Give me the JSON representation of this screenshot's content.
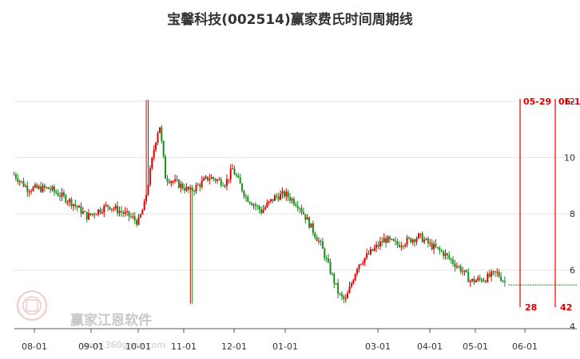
{
  "chart_data": {
    "type": "candlestick",
    "title": "宝馨科技(002514)赢家费氏时间周期线",
    "xlabel": "",
    "ylabel": "",
    "ylim": [
      4,
      12
    ],
    "y_ticks": [
      4,
      6,
      8,
      10,
      12
    ],
    "x_ticks": [
      "08-01",
      "09-01",
      "10-01",
      "11-01",
      "12-01",
      "01-01",
      "03-01",
      "04-01",
      "05-01",
      "06-01"
    ],
    "grid": true,
    "colors": {
      "up": "#e00000",
      "down": "#1a8a1a",
      "cycle_line": "#e00000",
      "grid": "#e6e6e6"
    },
    "price_path": [
      [
        "07-16",
        9.4
      ],
      [
        "07-26",
        8.9
      ],
      [
        "08-09",
        8.9
      ],
      [
        "08-21",
        8.4
      ],
      [
        "08-29",
        7.9
      ],
      [
        "09-05",
        8.1
      ],
      [
        "09-12",
        8.3
      ],
      [
        "09-19",
        8.1
      ],
      [
        "09-26",
        7.9
      ],
      [
        "10-01",
        7.7
      ],
      [
        "10-05",
        8.3
      ],
      [
        "10-12",
        10.5
      ],
      [
        "10-15",
        11.2
      ],
      [
        "10-19",
        9.3
      ],
      [
        "10-26",
        9.1
      ],
      [
        "11-05",
        8.8
      ],
      [
        "11-16",
        9.3
      ],
      [
        "11-26",
        9.1
      ],
      [
        "11-30",
        9.6
      ],
      [
        "12-08",
        8.6
      ],
      [
        "12-17",
        8.1
      ],
      [
        "12-25",
        8.6
      ],
      [
        "01-01",
        8.7
      ],
      [
        "01-10",
        8.3
      ],
      [
        "01-24",
        6.9
      ],
      [
        "02-06",
        5.1
      ],
      [
        "02-10",
        4.9
      ],
      [
        "02-18",
        6.2
      ],
      [
        "03-05",
        7.1
      ],
      [
        "03-12",
        6.9
      ],
      [
        "03-25",
        7.2
      ],
      [
        "04-01",
        6.9
      ],
      [
        "04-10",
        6.6
      ],
      [
        "04-22",
        6.0
      ],
      [
        "04-28",
        5.6
      ],
      [
        "05-07",
        5.7
      ],
      [
        "05-14",
        5.9
      ],
      [
        "05-20",
        5.5
      ]
    ],
    "series": [
      {
        "name": "",
        "values": []
      }
    ],
    "cycle_lines": [
      {
        "date_label": "05-29",
        "count_label": "28"
      },
      {
        "date_label": "06-1",
        "count_label": "42"
      }
    ],
    "watermark": {
      "text": "赢家江恩软件",
      "url": "www.360gann.com"
    }
  }
}
